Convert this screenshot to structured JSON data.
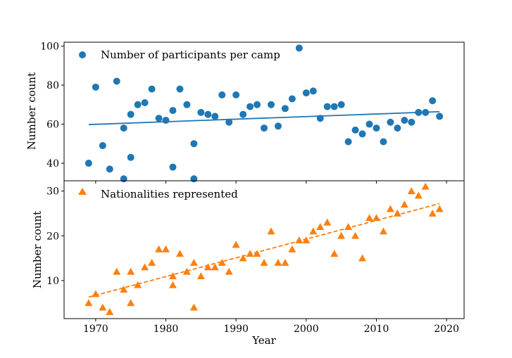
{
  "chart_data": [
    {
      "type": "scatter",
      "panel": "top",
      "ylabel": "Number count",
      "xlabel": "",
      "xlim": [
        1965.5,
        2022.5
      ],
      "ylim": [
        31,
        102
      ],
      "yticks": [
        40,
        60,
        80,
        100
      ],
      "grid": false,
      "legend": {
        "placement": "top-left",
        "label": "Number of participants per camp"
      },
      "series": [
        {
          "name": "Number of participants per camp",
          "color": "#1f77b4",
          "marker": "circle",
          "points": [
            [
              1969,
              40
            ],
            [
              1970,
              79
            ],
            [
              1971,
              49
            ],
            [
              1972,
              37
            ],
            [
              1973,
              82
            ],
            [
              1974,
              58
            ],
            [
              1974,
              32
            ],
            [
              1975,
              65
            ],
            [
              1975,
              43
            ],
            [
              1976,
              70
            ],
            [
              1977,
              71
            ],
            [
              1978,
              78
            ],
            [
              1979,
              63
            ],
            [
              1980,
              62
            ],
            [
              1981,
              67
            ],
            [
              1981,
              38
            ],
            [
              1982,
              78
            ],
            [
              1983,
              70
            ],
            [
              1984,
              50
            ],
            [
              1984,
              32
            ],
            [
              1985,
              66
            ],
            [
              1986,
              65
            ],
            [
              1987,
              64
            ],
            [
              1988,
              75
            ],
            [
              1989,
              61
            ],
            [
              1990,
              75
            ],
            [
              1991,
              65
            ],
            [
              1992,
              69
            ],
            [
              1993,
              70
            ],
            [
              1994,
              58
            ],
            [
              1995,
              70
            ],
            [
              1996,
              59
            ],
            [
              1997,
              68
            ],
            [
              1998,
              73
            ],
            [
              1999,
              99
            ],
            [
              2000,
              76
            ],
            [
              2001,
              77
            ],
            [
              2002,
              63
            ],
            [
              2003,
              69
            ],
            [
              2004,
              69
            ],
            [
              2005,
              70
            ],
            [
              2006,
              51
            ],
            [
              2007,
              57
            ],
            [
              2008,
              55
            ],
            [
              2009,
              60
            ],
            [
              2010,
              58
            ],
            [
              2011,
              51
            ],
            [
              2012,
              61
            ],
            [
              2013,
              58
            ],
            [
              2014,
              62
            ],
            [
              2015,
              61
            ],
            [
              2016,
              66
            ],
            [
              2017,
              66
            ],
            [
              2018,
              72
            ],
            [
              2019,
              64
            ]
          ]
        }
      ],
      "trendline": {
        "style": "solid",
        "color": "#1f77b4",
        "x": [
          1969,
          2019
        ],
        "y": [
          59.8,
          66.4
        ]
      }
    },
    {
      "type": "scatter",
      "panel": "bottom",
      "ylabel": "Number count",
      "xlabel": "Year",
      "xlim": [
        1965.5,
        2022.5
      ],
      "ylim": [
        1.5,
        32.3
      ],
      "yticks": [
        10,
        20,
        30
      ],
      "xticks": [
        1970,
        1980,
        1990,
        2000,
        2010,
        2020
      ],
      "grid": false,
      "legend": {
        "placement": "top-left",
        "label": "Nationalities represented"
      },
      "series": [
        {
          "name": "Nationalities represented",
          "color": "#ff7f0e",
          "marker": "triangle",
          "points": [
            [
              1969,
              5
            ],
            [
              1970,
              7
            ],
            [
              1971,
              4
            ],
            [
              1972,
              3
            ],
            [
              1973,
              12
            ],
            [
              1974,
              8
            ],
            [
              1975,
              12
            ],
            [
              1975,
              5
            ],
            [
              1976,
              9
            ],
            [
              1977,
              13
            ],
            [
              1978,
              14
            ],
            [
              1979,
              17
            ],
            [
              1980,
              17
            ],
            [
              1981,
              11
            ],
            [
              1981,
              9
            ],
            [
              1982,
              16
            ],
            [
              1983,
              12
            ],
            [
              1984,
              14
            ],
            [
              1984,
              4
            ],
            [
              1985,
              11
            ],
            [
              1986,
              13
            ],
            [
              1987,
              13
            ],
            [
              1988,
              14
            ],
            [
              1989,
              12
            ],
            [
              1990,
              18
            ],
            [
              1991,
              15
            ],
            [
              1992,
              16
            ],
            [
              1993,
              16
            ],
            [
              1994,
              14
            ],
            [
              1995,
              21
            ],
            [
              1996,
              14
            ],
            [
              1997,
              14
            ],
            [
              1998,
              17
            ],
            [
              1999,
              19
            ],
            [
              2000,
              19
            ],
            [
              2001,
              21
            ],
            [
              2002,
              22
            ],
            [
              2003,
              23
            ],
            [
              2004,
              16
            ],
            [
              2005,
              20
            ],
            [
              2006,
              22
            ],
            [
              2007,
              20
            ],
            [
              2008,
              15
            ],
            [
              2009,
              24
            ],
            [
              2010,
              24
            ],
            [
              2011,
              21
            ],
            [
              2012,
              26
            ],
            [
              2013,
              25
            ],
            [
              2014,
              27
            ],
            [
              2015,
              30
            ],
            [
              2016,
              29
            ],
            [
              2017,
              31
            ],
            [
              2018,
              25
            ],
            [
              2019,
              26
            ]
          ]
        }
      ],
      "trendline": {
        "style": "dashed",
        "color": "#ff7f0e",
        "x": [
          1969,
          2019
        ],
        "y": [
          6.3,
          27.2
        ]
      }
    }
  ]
}
